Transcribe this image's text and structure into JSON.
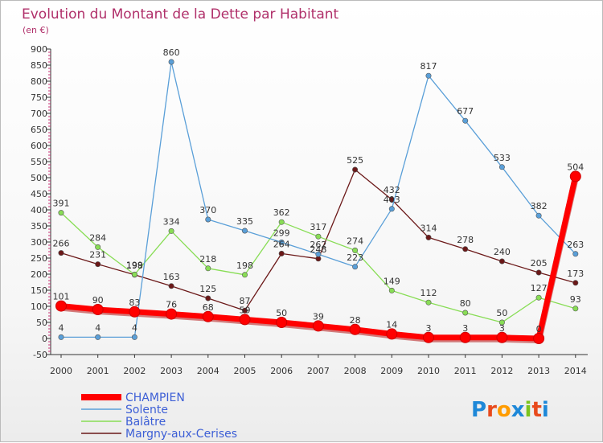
{
  "chart_data": {
    "type": "line",
    "title": "Evolution du Montant de la Dette par Habitant",
    "subtitle": "(en €)",
    "x": [
      2000,
      2001,
      2002,
      2003,
      2004,
      2005,
      2006,
      2007,
      2008,
      2009,
      2010,
      2011,
      2012,
      2013,
      2014
    ],
    "ylim": [
      -50,
      900
    ],
    "yticks": [
      -50,
      0,
      50,
      100,
      150,
      200,
      250,
      300,
      350,
      400,
      450,
      500,
      550,
      600,
      650,
      700,
      750,
      800,
      850,
      900
    ],
    "grid": false,
    "legend_position": "bottom-left",
    "series": [
      {
        "name": "Margny-aux-Cerises",
        "color": "#6b1818",
        "values": [
          266,
          231,
          198,
          163,
          125,
          87,
          264,
          248,
          525,
          432,
          314,
          278,
          240,
          205,
          173
        ]
      },
      {
        "name": "Balâtre",
        "color": "#88dd55",
        "values": [
          391,
          284,
          199,
          334,
          218,
          198,
          362,
          317,
          274,
          149,
          112,
          80,
          50,
          127,
          93
        ]
      },
      {
        "name": "Solente",
        "color": "#5a9fd8",
        "values": [
          4,
          4,
          4,
          860,
          370,
          335,
          299,
          262,
          223,
          403,
          817,
          677,
          533,
          382,
          263
        ]
      },
      {
        "name": "CHAMPIEN",
        "color": "#ff0000",
        "values": [
          101,
          90,
          83,
          76,
          68,
          59,
          50,
          39,
          28,
          14,
          3,
          3,
          3,
          0,
          504
        ]
      }
    ]
  },
  "logo": {
    "text": "Proxiti",
    "colors": [
      "#1e88d8",
      "#e84a1c",
      "#ff9c00",
      "#1e88d8",
      "#7cc41f",
      "#e84a1c",
      "#1e88d8"
    ]
  }
}
